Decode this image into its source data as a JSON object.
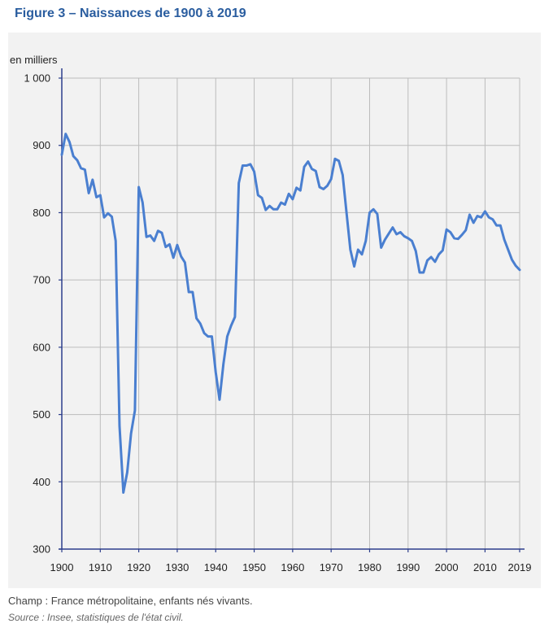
{
  "figure_title": "Figure 3 – Naissances de 1900 à 2019",
  "note": "Champ : France métropolitaine, enfants nés vivants.",
  "source": "Source : Insee, statistiques de l'état civil.",
  "colors": {
    "title": "#2a5d9f",
    "line": "#4a7fd0",
    "panel": "#f2f2f2",
    "grid": "#bcbcbc",
    "axis": "#2c3e8c"
  },
  "chart_data": {
    "type": "line",
    "title": "",
    "xlabel": "",
    "ylabel": "en milliers",
    "xlim": [
      1900,
      2019
    ],
    "ylim": [
      300,
      1000
    ],
    "grid": true,
    "x_ticks": [
      1900,
      1910,
      1920,
      1930,
      1940,
      1950,
      1960,
      1970,
      1980,
      1990,
      2000,
      2010,
      2019
    ],
    "x_tick_labels": [
      "1900",
      "1910",
      "1920",
      "1930",
      "1940",
      "1950",
      "1960",
      "1970",
      "1980",
      "1990",
      "2000",
      "2010",
      "2019"
    ],
    "y_ticks": [
      300,
      400,
      500,
      600,
      700,
      800,
      900,
      1000
    ],
    "y_tick_labels": [
      "300",
      "400",
      "500",
      "600",
      "700",
      "800",
      "900",
      "1 000"
    ],
    "series": [
      {
        "x": [
          1900,
          1901,
          1902,
          1903,
          1904,
          1905,
          1906,
          1907,
          1908,
          1909,
          1910,
          1911,
          1912,
          1913,
          1914,
          1915,
          1916,
          1917,
          1918,
          1919,
          1920,
          1921,
          1922,
          1923,
          1924,
          1925,
          1926,
          1927,
          1928,
          1929,
          1930,
          1931,
          1932,
          1933,
          1934,
          1935,
          1936,
          1937,
          1938,
          1939,
          1940,
          1941,
          1942,
          1943,
          1944,
          1945,
          1946,
          1947,
          1948,
          1949,
          1950,
          1951,
          1952,
          1953,
          1954,
          1955,
          1956,
          1957,
          1958,
          1959,
          1960,
          1961,
          1962,
          1963,
          1964,
          1965,
          1966,
          1967,
          1968,
          1969,
          1970,
          1971,
          1972,
          1973,
          1974,
          1975,
          1976,
          1977,
          1978,
          1979,
          1980,
          1981,
          1982,
          1983,
          1984,
          1985,
          1986,
          1987,
          1988,
          1989,
          1990,
          1991,
          1992,
          1993,
          1994,
          1995,
          1996,
          1997,
          1998,
          1999,
          2000,
          2001,
          2002,
          2003,
          2004,
          2005,
          2006,
          2007,
          2008,
          2009,
          2010,
          2011,
          2012,
          2013,
          2014,
          2015,
          2016,
          2017,
          2018,
          2019
        ],
        "values": [
          886,
          917,
          905,
          884,
          878,
          866,
          864,
          829,
          849,
          823,
          826,
          793,
          799,
          794,
          758,
          483,
          384,
          414,
          472,
          506,
          838,
          815,
          764,
          766,
          758,
          773,
          770,
          749,
          753,
          733,
          752,
          735,
          726,
          682,
          682,
          643,
          635,
          621,
          616,
          616,
          563,
          522,
          575,
          616,
          632,
          645,
          844,
          870,
          870,
          872,
          861,
          826,
          822,
          804,
          810,
          805,
          805,
          815,
          812,
          828,
          820,
          837,
          833,
          868,
          876,
          865,
          862,
          838,
          835,
          840,
          850,
          880,
          877,
          856,
          800,
          745,
          720,
          745,
          738,
          758,
          800,
          805,
          798,
          748,
          760,
          769,
          778,
          768,
          771,
          765,
          762,
          758,
          743,
          711,
          711,
          729,
          734,
          727,
          738,
          744,
          775,
          771,
          762,
          761,
          767,
          774,
          797,
          785,
          795,
          793,
          802,
          793,
          790,
          781,
          781,
          760,
          745,
          730,
          721,
          715
        ]
      }
    ]
  }
}
